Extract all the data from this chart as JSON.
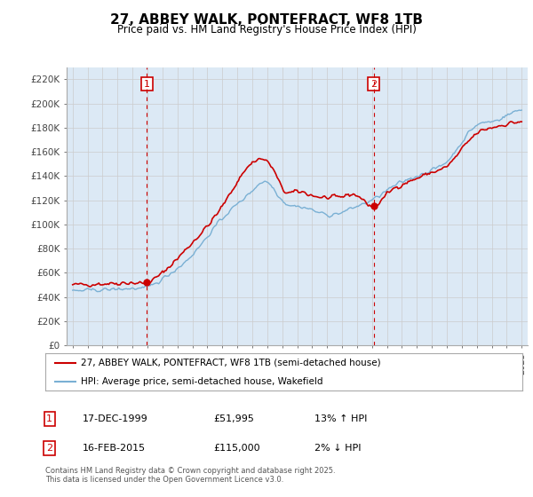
{
  "title": "27, ABBEY WALK, PONTEFRACT, WF8 1TB",
  "subtitle": "Price paid vs. HM Land Registry's House Price Index (HPI)",
  "legend_line1": "27, ABBEY WALK, PONTEFRACT, WF8 1TB (semi-detached house)",
  "legend_line2": "HPI: Average price, semi-detached house, Wakefield",
  "annotation1_label": "1",
  "annotation1_date": "17-DEC-1999",
  "annotation1_price": "£51,995",
  "annotation1_hpi": "13% ↑ HPI",
  "annotation2_label": "2",
  "annotation2_date": "16-FEB-2015",
  "annotation2_price": "£115,000",
  "annotation2_hpi": "2% ↓ HPI",
  "footnote": "Contains HM Land Registry data © Crown copyright and database right 2025.\nThis data is licensed under the Open Government Licence v3.0.",
  "red_color": "#cc0000",
  "blue_color": "#7ab0d4",
  "annotation_color": "#cc0000",
  "grid_color": "#cccccc",
  "plot_bg_color": "#dce9f5",
  "background_color": "#ffffff",
  "ylim": [
    0,
    230000
  ],
  "yticks": [
    0,
    20000,
    40000,
    60000,
    80000,
    100000,
    120000,
    140000,
    160000,
    180000,
    200000,
    220000
  ],
  "ytick_labels": [
    "£0",
    "£20K",
    "£40K",
    "£60K",
    "£80K",
    "£100K",
    "£120K",
    "£140K",
    "£160K",
    "£180K",
    "£200K",
    "£220K"
  ],
  "year_start": 1995,
  "year_end": 2025,
  "sale1_year": 1999.96,
  "sale1_value": 51995,
  "sale2_year": 2015.12,
  "sale2_value": 115000
}
